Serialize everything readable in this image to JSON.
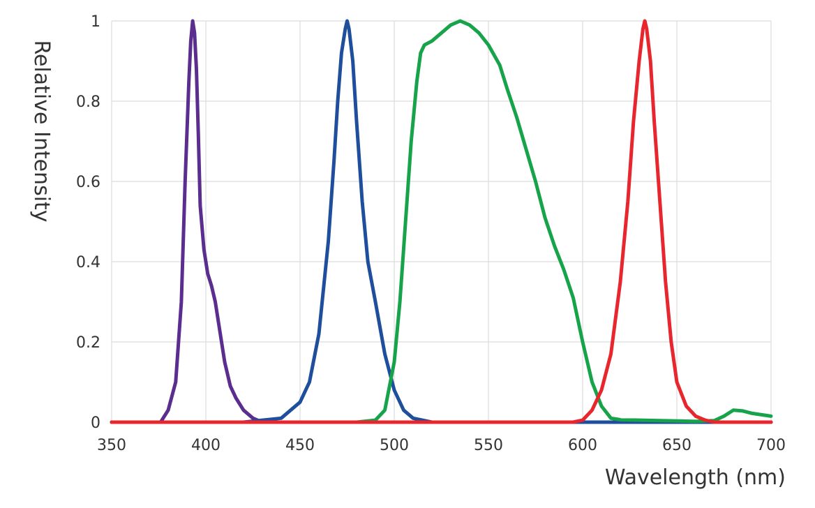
{
  "chart_data": {
    "type": "line",
    "title": "",
    "xlabel": "Wavelength (nm)",
    "ylabel": "Relative Intensity",
    "xlim": [
      350,
      700
    ],
    "ylim": [
      0,
      1
    ],
    "grid": true,
    "x_ticks": [
      350,
      400,
      450,
      500,
      550,
      600,
      650,
      700
    ],
    "x_tick_labels": [
      "350",
      "400",
      "450",
      "500",
      "550",
      "600",
      "650",
      "700"
    ],
    "y_ticks": [
      0,
      0.2,
      0.4,
      0.6,
      0.8,
      1
    ],
    "y_tick_labels": [
      "0",
      "0.2",
      "0.4",
      "0.6",
      "0.8",
      "1"
    ],
    "series": [
      {
        "name": "violet",
        "color": "#5b2d8e",
        "x": [
          350,
          376,
          380,
          384,
          387,
          389,
          391,
          392,
          393,
          394,
          395,
          396,
          397,
          399,
          401,
          403,
          405,
          407,
          410,
          413,
          416,
          420,
          425,
          430,
          440,
          460,
          500,
          600,
          700
        ],
        "y": [
          0.0,
          0.0,
          0.03,
          0.1,
          0.3,
          0.6,
          0.85,
          0.95,
          1.0,
          0.97,
          0.88,
          0.72,
          0.54,
          0.43,
          0.37,
          0.34,
          0.3,
          0.24,
          0.15,
          0.09,
          0.06,
          0.03,
          0.01,
          0.0,
          0.0,
          0.0,
          0.0,
          0.0,
          0.0
        ]
      },
      {
        "name": "blue",
        "color": "#1f4f9c",
        "x": [
          350,
          420,
          440,
          450,
          455,
          460,
          465,
          468,
          470,
          472,
          474,
          475,
          476,
          478,
          480,
          483,
          486,
          490,
          495,
          500,
          505,
          510,
          520,
          600,
          700
        ],
        "y": [
          0.0,
          0.0,
          0.01,
          0.05,
          0.1,
          0.22,
          0.45,
          0.65,
          0.8,
          0.92,
          0.98,
          1.0,
          0.98,
          0.9,
          0.75,
          0.55,
          0.4,
          0.3,
          0.17,
          0.08,
          0.03,
          0.01,
          0.0,
          0.0,
          0.0
        ]
      },
      {
        "name": "green",
        "color": "#17a34a",
        "x": [
          350,
          480,
          490,
          495,
          500,
          503,
          506,
          509,
          512,
          514,
          516,
          520,
          525,
          530,
          535,
          540,
          545,
          550,
          556,
          560,
          565,
          570,
          575,
          580,
          585,
          590,
          595,
          600,
          605,
          610,
          615,
          620,
          630,
          650,
          660,
          670,
          675,
          680,
          685,
          690,
          700
        ],
        "y": [
          0.0,
          0.0,
          0.005,
          0.03,
          0.15,
          0.3,
          0.5,
          0.7,
          0.85,
          0.92,
          0.94,
          0.95,
          0.97,
          0.99,
          1.0,
          0.99,
          0.97,
          0.94,
          0.89,
          0.83,
          0.76,
          0.68,
          0.6,
          0.51,
          0.44,
          0.38,
          0.31,
          0.2,
          0.1,
          0.04,
          0.01,
          0.006,
          0.005,
          0.003,
          0.002,
          0.004,
          0.015,
          0.03,
          0.028,
          0.022,
          0.015
        ]
      },
      {
        "name": "red",
        "color": "#e8262e",
        "x": [
          350,
          595,
          600,
          605,
          610,
          615,
          620,
          624,
          627,
          630,
          632,
          633,
          634,
          636,
          638,
          641,
          644,
          647,
          650,
          655,
          660,
          665,
          670,
          700
        ],
        "y": [
          0.0,
          0.0,
          0.005,
          0.03,
          0.08,
          0.17,
          0.35,
          0.55,
          0.75,
          0.9,
          0.98,
          1.0,
          0.98,
          0.9,
          0.75,
          0.55,
          0.35,
          0.2,
          0.1,
          0.04,
          0.015,
          0.005,
          0.0,
          0.0
        ]
      }
    ]
  }
}
